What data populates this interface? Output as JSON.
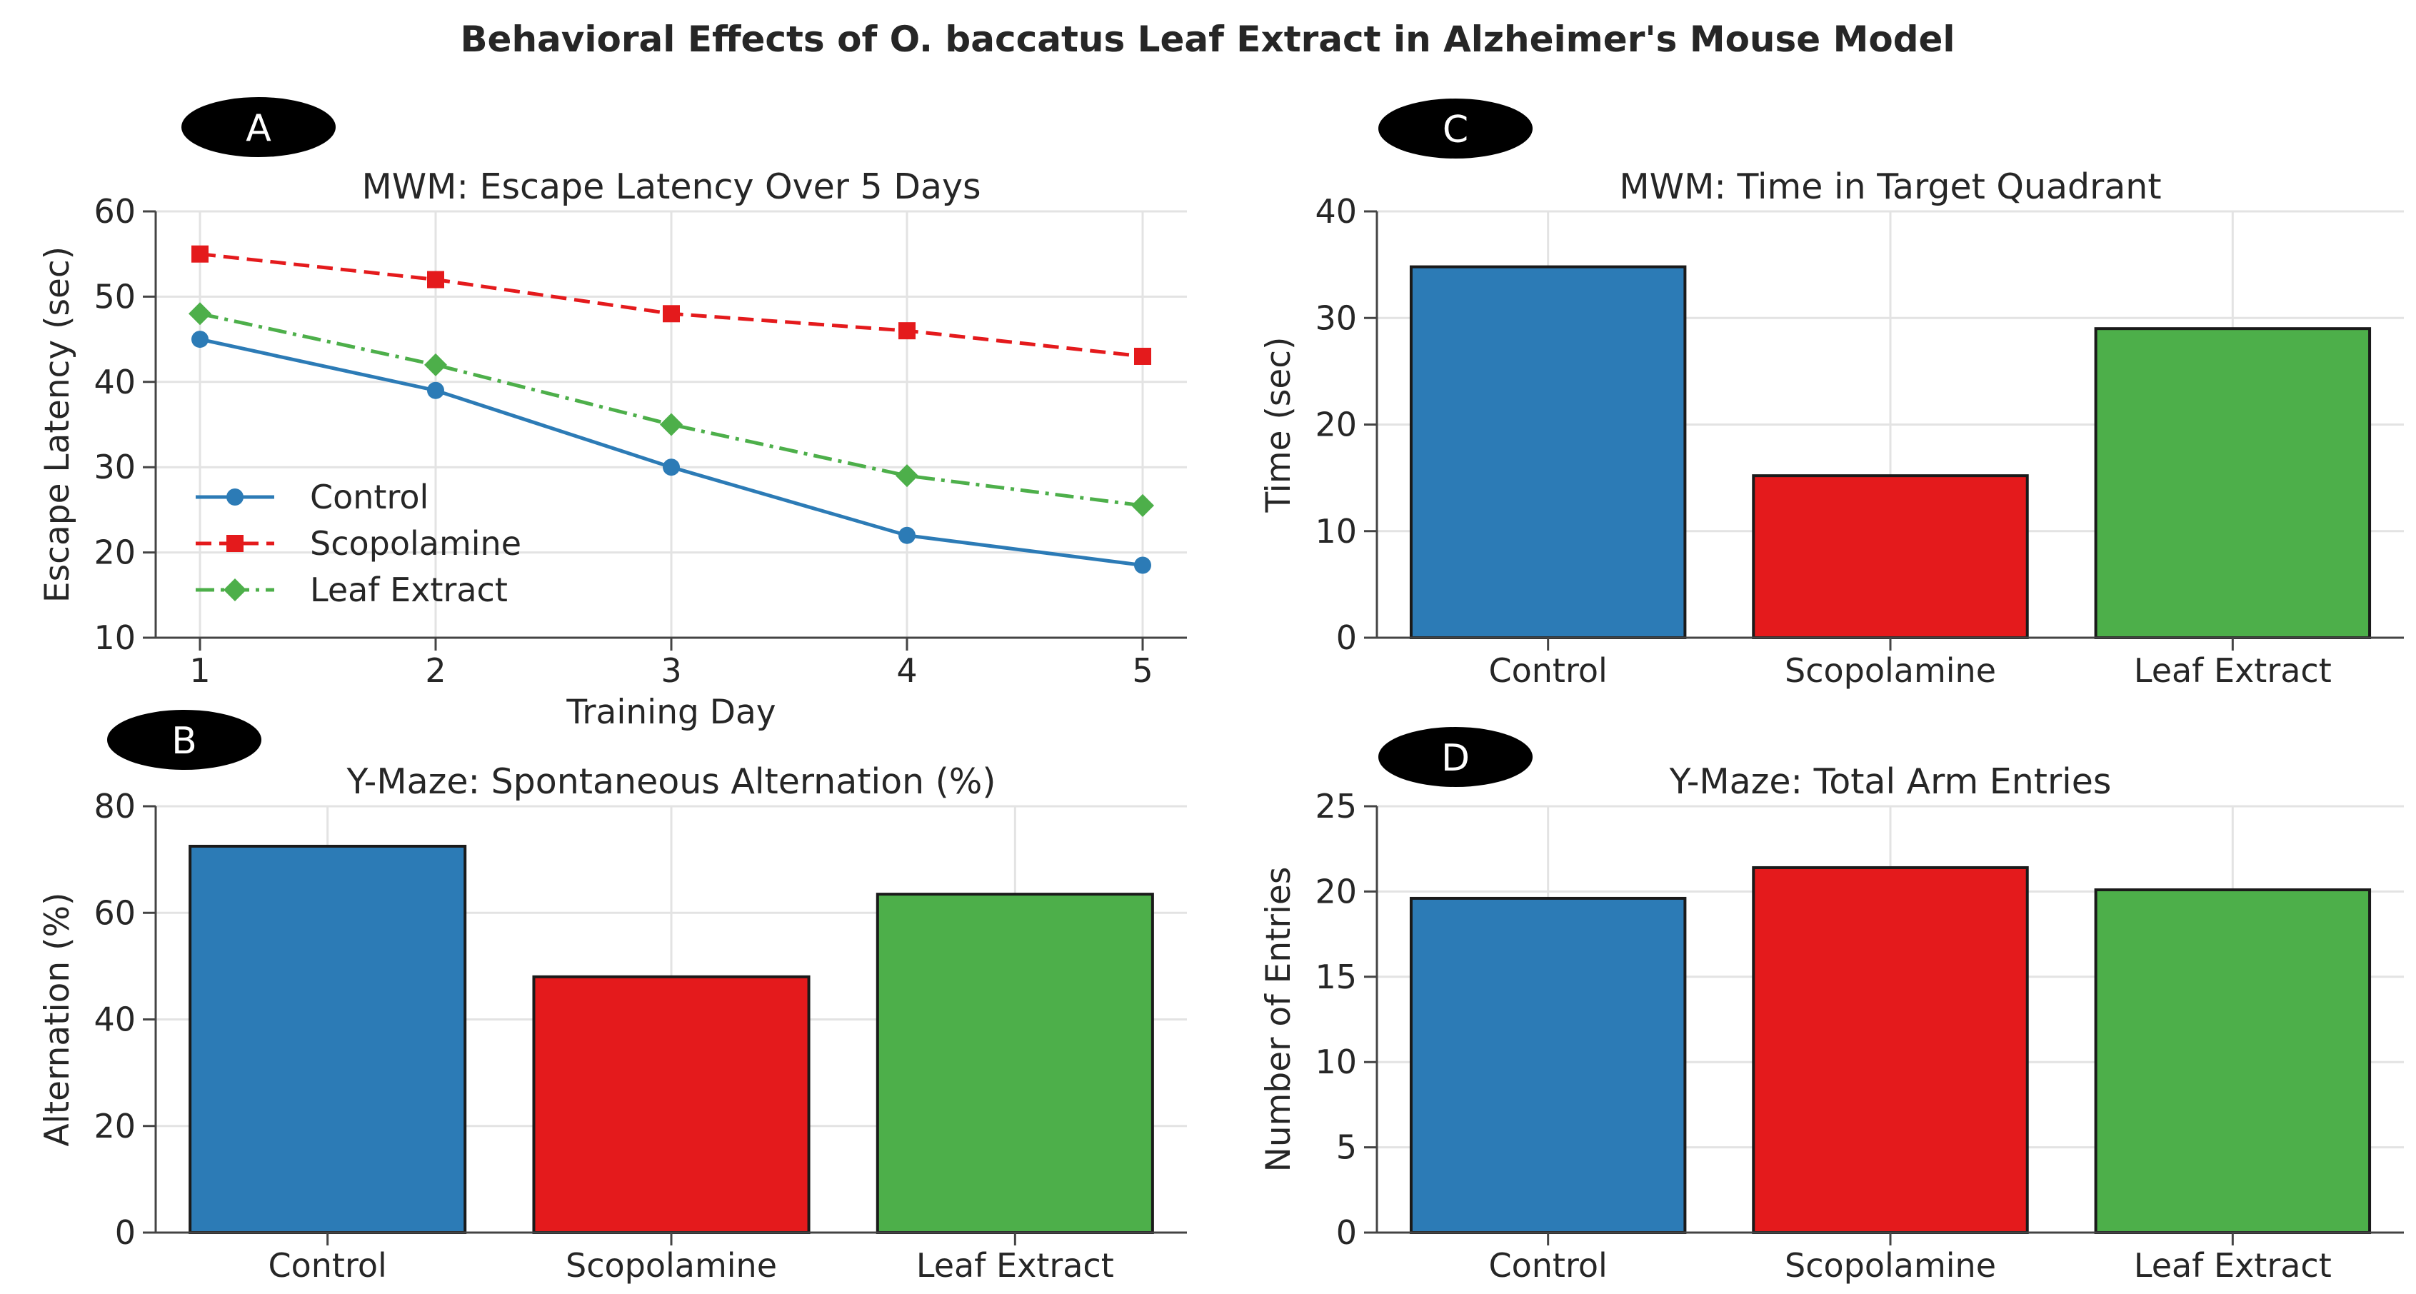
{
  "figure": {
    "title": "Behavioral Effects of O. baccatus Leaf Extract in Alzheimer's Mouse Model"
  },
  "colors": {
    "control": "#2c7bb6",
    "scopolamine": "#e41a1c",
    "leaf_extract": "#4daf4a",
    "grid": "#e3e3e3",
    "axis": "#444444",
    "text": "#262626"
  },
  "chart_data": [
    {
      "id": "A",
      "type": "line",
      "panel_label": "A",
      "title": "MWM: Escape Latency Over 5 Days",
      "xlabel": "Training Day",
      "ylabel": "Escape Latency (sec)",
      "x": [
        1,
        2,
        3,
        4,
        5
      ],
      "x_tick_labels": [
        "1",
        "2",
        "3",
        "4",
        "5"
      ],
      "ylim": [
        10,
        60
      ],
      "y_ticks": [
        10,
        20,
        30,
        40,
        50,
        60
      ],
      "grid": true,
      "legend": "middle-left",
      "series": [
        {
          "name": "Control",
          "values": [
            45,
            39,
            30,
            22,
            18.5
          ],
          "color": "#2c7bb6",
          "line": "solid",
          "marker": "circle"
        },
        {
          "name": "Scopolamine",
          "values": [
            55,
            52,
            48,
            46,
            43
          ],
          "color": "#e41a1c",
          "line": "dashed",
          "marker": "square"
        },
        {
          "name": "Leaf Extract",
          "values": [
            48,
            42,
            35,
            29,
            25.5
          ],
          "color": "#4daf4a",
          "line": "dashdot",
          "marker": "diamond"
        }
      ]
    },
    {
      "id": "B",
      "type": "bar",
      "panel_label": "B",
      "title": "Y-Maze: Spontaneous Alternation (%)",
      "xlabel": "",
      "ylabel": "Alternation (%)",
      "categories": [
        "Control",
        "Scopolamine",
        "Leaf Extract"
      ],
      "values": [
        72.5,
        48,
        63.5
      ],
      "bar_colors": [
        "#2c7bb6",
        "#e41a1c",
        "#4daf4a"
      ],
      "ylim": [
        0,
        80
      ],
      "y_ticks": [
        0,
        20,
        40,
        60,
        80
      ],
      "grid": true
    },
    {
      "id": "C",
      "type": "bar",
      "panel_label": "C",
      "title": "MWM: Time in Target Quadrant",
      "xlabel": "",
      "ylabel": "Time (sec)",
      "categories": [
        "Control",
        "Scopolamine",
        "Leaf Extract"
      ],
      "values": [
        34.8,
        15.2,
        29
      ],
      "bar_colors": [
        "#2c7bb6",
        "#e41a1c",
        "#4daf4a"
      ],
      "ylim": [
        0,
        40
      ],
      "y_ticks": [
        0,
        10,
        20,
        30,
        40
      ],
      "grid": true
    },
    {
      "id": "D",
      "type": "bar",
      "panel_label": "D",
      "title": "Y-Maze: Total Arm Entries",
      "xlabel": "",
      "ylabel": "Number of Entries",
      "categories": [
        "Control",
        "Scopolamine",
        "Leaf Extract"
      ],
      "values": [
        19.6,
        21.4,
        20.1
      ],
      "bar_colors": [
        "#2c7bb6",
        "#e41a1c",
        "#4daf4a"
      ],
      "ylim": [
        0,
        25
      ],
      "y_ticks": [
        0,
        5,
        10,
        15,
        20,
        25
      ],
      "grid": true
    }
  ]
}
